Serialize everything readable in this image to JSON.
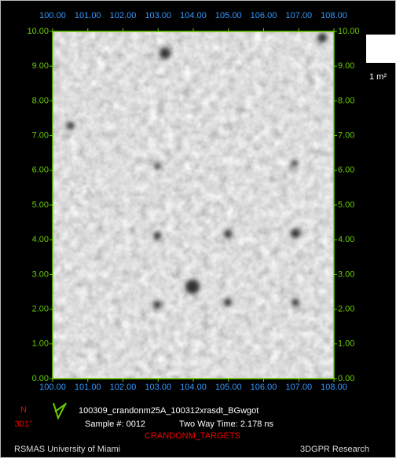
{
  "axes": {
    "top": [
      "100.00",
      "101.00",
      "102.00",
      "103.00",
      "104.00",
      "105.00",
      "106.00",
      "107.00",
      "108.00"
    ],
    "bottom": [
      "100.00",
      "101.00",
      "102.00",
      "103.00",
      "104.00",
      "105.00",
      "106.00",
      "107.00",
      "108.00"
    ],
    "left": [
      "0.00",
      "1.00",
      "2.00",
      "3.00",
      "4.00",
      "5.00",
      "6.00",
      "7.00",
      "8.00",
      "9.00",
      "10.00"
    ],
    "right": [
      "0.00",
      "1.00",
      "2.00",
      "3.00",
      "4.00",
      "5.00",
      "6.00",
      "7.00",
      "8.00",
      "9.00",
      "10.00"
    ]
  },
  "scale_label": "1 m²",
  "footer": {
    "north": "N",
    "heading": "301°",
    "file": "100309_crandonm25A_100312xrasdt_BGwgot",
    "sample": "Sample #: 0012",
    "time": "Two Way Time: 2.178 ns",
    "project": "CRANDONM_TARGETS",
    "institution": "RSMAS University of Miami",
    "credit": "3DGPR Research"
  }
}
